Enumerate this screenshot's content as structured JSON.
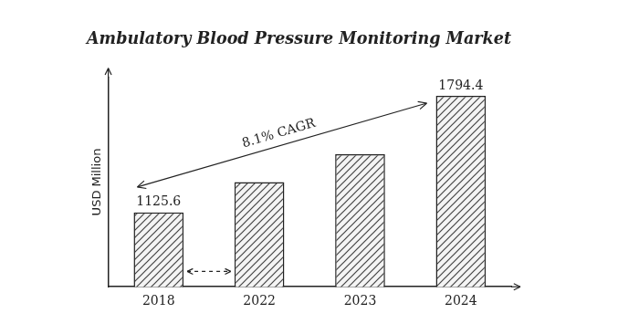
{
  "chart_data": {
    "type": "bar",
    "title": "Ambulatory Blood Pressure Monitoring Market",
    "y_label": "USD Million",
    "categories": [
      "2018",
      "2022",
      "2023",
      "2024"
    ],
    "values": [
      1125.6,
      1300,
      1460,
      1794.4
    ],
    "value_labels": [
      "1125.6",
      null,
      null,
      "1794.4"
    ],
    "data_labels": true,
    "annotations": [
      "8.1% CAGR"
    ],
    "color": "#444444",
    "ylim": [
      700,
      1900
    ],
    "tick_labels": "x",
    "grid": false
  }
}
